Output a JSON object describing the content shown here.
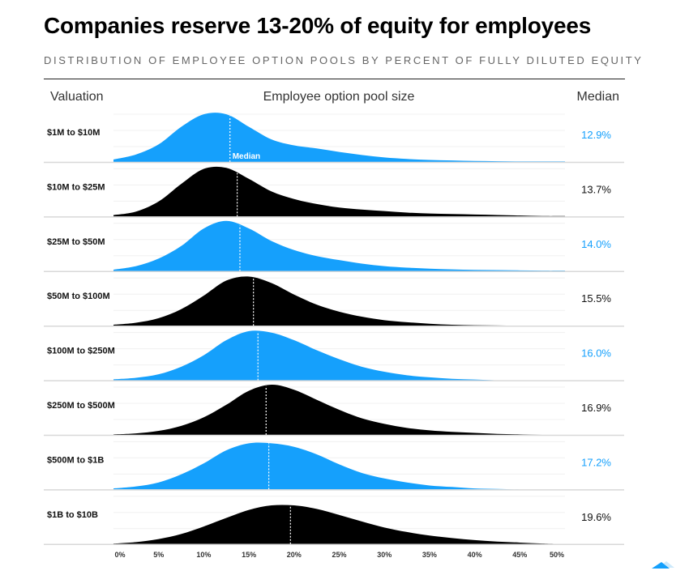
{
  "title": "Companies reserve 13-20% of equity for employees",
  "subtitle": "DISTRIBUTION OF EMPLOYEE OPTION POOLS BY PERCENT OF FULLY DILUTED EQUITY",
  "chart_data": {
    "type": "area",
    "title": "Companies reserve 13-20% of equity for employees",
    "subtitle": "DISTRIBUTION OF EMPLOYEE OPTION POOLS BY PERCENT OF FULLY DILUTED EQUITY",
    "column_headers": {
      "left": "Valuation",
      "center": "Employee option pool size",
      "right": "Median"
    },
    "xlabel": "",
    "xlim": [
      0,
      50
    ],
    "x_ticks": [
      "0%",
      "5%",
      "10%",
      "15%",
      "20%",
      "25%",
      "30%",
      "35%",
      "40%",
      "45%",
      "50%"
    ],
    "grid": true,
    "annotation": "Median",
    "colors": {
      "blue": "#15a0fc",
      "black": "#000000"
    },
    "x": [
      0,
      2.5,
      5,
      7.5,
      10,
      12.5,
      15,
      17.5,
      20,
      22.5,
      25,
      27.5,
      30,
      32.5,
      35,
      37.5,
      40,
      42.5,
      45,
      47.5,
      50
    ],
    "series": [
      {
        "name": "$1M to $10M",
        "median": 12.9,
        "median_label": "12.9%",
        "color": "#15a0fc",
        "density": [
          0.05,
          0.15,
          0.35,
          0.7,
          0.95,
          0.95,
          0.7,
          0.45,
          0.33,
          0.27,
          0.2,
          0.14,
          0.09,
          0.06,
          0.04,
          0.03,
          0.02,
          0.015,
          0.01,
          0.01,
          0.01
        ]
      },
      {
        "name": "$10M to $25M",
        "median": 13.7,
        "median_label": "13.7%",
        "color": "#000000",
        "density": [
          0.03,
          0.1,
          0.3,
          0.65,
          0.95,
          0.97,
          0.75,
          0.5,
          0.35,
          0.25,
          0.18,
          0.14,
          0.11,
          0.08,
          0.06,
          0.05,
          0.04,
          0.03,
          0.02,
          0.01,
          0.01
        ]
      },
      {
        "name": "$25M to $50M",
        "median": 14.0,
        "median_label": "14.0%",
        "color": "#15a0fc",
        "density": [
          0.03,
          0.1,
          0.25,
          0.5,
          0.85,
          1.0,
          0.85,
          0.6,
          0.42,
          0.3,
          0.22,
          0.15,
          0.1,
          0.07,
          0.05,
          0.035,
          0.025,
          0.02,
          0.015,
          0.01,
          0.01
        ]
      },
      {
        "name": "$50M to $100M",
        "median": 15.5,
        "median_label": "15.5%",
        "color": "#000000",
        "density": [
          0.02,
          0.06,
          0.15,
          0.33,
          0.6,
          0.9,
          0.98,
          0.85,
          0.62,
          0.42,
          0.28,
          0.18,
          0.11,
          0.07,
          0.04,
          0.02,
          0.01,
          0.005,
          0,
          0,
          0
        ]
      },
      {
        "name": "$100M to $250M",
        "median": 16.0,
        "median_label": "16.0%",
        "color": "#15a0fc",
        "density": [
          0.02,
          0.05,
          0.12,
          0.27,
          0.5,
          0.8,
          0.98,
          0.95,
          0.8,
          0.6,
          0.42,
          0.27,
          0.17,
          0.1,
          0.06,
          0.03,
          0.015,
          0,
          0,
          0,
          0
        ]
      },
      {
        "name": "$250M to $500M",
        "median": 16.9,
        "median_label": "16.9%",
        "color": "#000000",
        "density": [
          0.01,
          0.03,
          0.08,
          0.18,
          0.35,
          0.6,
          0.88,
          1.0,
          0.9,
          0.7,
          0.5,
          0.33,
          0.22,
          0.14,
          0.09,
          0.06,
          0.04,
          0.02,
          0.01,
          0,
          0
        ]
      },
      {
        "name": "$500M to $1B",
        "median": 17.2,
        "median_label": "17.2%",
        "color": "#15a0fc",
        "density": [
          0.02,
          0.06,
          0.14,
          0.3,
          0.52,
          0.78,
          0.92,
          0.92,
          0.85,
          0.7,
          0.5,
          0.33,
          0.22,
          0.14,
          0.08,
          0.05,
          0.02,
          0.01,
          0,
          0,
          0
        ]
      },
      {
        "name": "$1B to $10B",
        "median": 19.6,
        "median_label": "19.6%",
        "color": "#000000",
        "density": [
          0.01,
          0.04,
          0.1,
          0.2,
          0.35,
          0.52,
          0.68,
          0.77,
          0.77,
          0.7,
          0.58,
          0.45,
          0.33,
          0.24,
          0.17,
          0.12,
          0.08,
          0.05,
          0.03,
          0.01,
          0
        ]
      }
    ]
  }
}
